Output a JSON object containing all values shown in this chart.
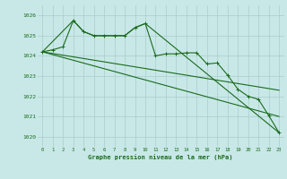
{
  "background_color": "#c8e8e8",
  "grid_color": "#aacccc",
  "line_color": "#1a6b1a",
  "title": "Graphe pression niveau de la mer (hPa)",
  "xlim": [
    -0.5,
    23.5
  ],
  "ylim": [
    1019.5,
    1026.5
  ],
  "yticks": [
    1020,
    1021,
    1022,
    1023,
    1024,
    1025,
    1026
  ],
  "xticks": [
    0,
    1,
    2,
    3,
    4,
    5,
    6,
    7,
    8,
    9,
    10,
    11,
    12,
    13,
    14,
    15,
    16,
    17,
    18,
    19,
    20,
    21,
    22,
    23
  ],
  "series1_x": [
    0,
    1,
    2,
    3,
    4,
    5,
    6,
    7,
    8,
    9,
    10,
    11,
    12,
    13,
    14,
    15,
    16,
    17,
    18,
    19,
    20,
    21,
    22,
    23
  ],
  "series1_y": [
    1024.2,
    1024.3,
    1024.45,
    1025.75,
    1025.2,
    1025.0,
    1025.0,
    1025.0,
    1025.0,
    1025.4,
    1025.6,
    1024.0,
    1024.1,
    1024.1,
    1024.15,
    1024.15,
    1023.6,
    1023.65,
    1023.05,
    1022.35,
    1022.0,
    1021.85,
    1021.05,
    1020.2
  ],
  "series2_x": [
    0,
    3,
    4,
    5,
    6,
    7,
    8,
    9,
    10,
    23
  ],
  "series2_y": [
    1024.2,
    1025.75,
    1025.2,
    1025.0,
    1025.0,
    1025.0,
    1025.0,
    1025.4,
    1025.6,
    1020.2
  ],
  "series3_x": [
    0,
    23
  ],
  "series3_y": [
    1024.2,
    1022.3
  ],
  "series4_x": [
    0,
    23
  ],
  "series4_y": [
    1024.2,
    1021.0
  ]
}
